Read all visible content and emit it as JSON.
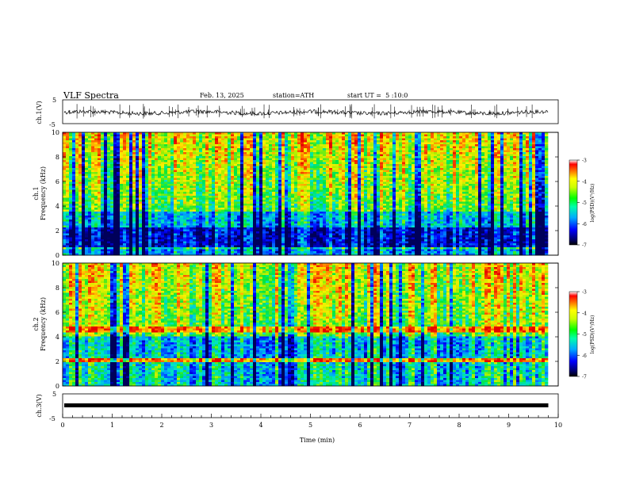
{
  "header": {
    "title": "VLF Spectra",
    "date": "Feb. 13, 2025",
    "station": "station=ATH",
    "start_ut": "start UT =  5 :10:0"
  },
  "chart_data": [
    {
      "type": "line",
      "name": "ch1-waveform",
      "ylabel": "ch.1(V)",
      "ylim": [
        -5,
        5
      ],
      "yticks": [
        "5",
        "-5"
      ],
      "xlim": [
        0,
        10
      ]
    },
    {
      "type": "heatmap",
      "name": "ch1-spectrogram",
      "ylabel_line1": "ch.1",
      "ylabel_line2": "Frequency (kHz)",
      "ylim": [
        0,
        10
      ],
      "yticks": [
        "0",
        "2",
        "4",
        "6",
        "8",
        "10"
      ],
      "xlim": [
        0,
        10
      ],
      "data_end_min": 9.8,
      "colorbar": {
        "range": [
          -7,
          -3
        ],
        "ticks": [
          "-3",
          "-4",
          "-5",
          "-6",
          "-7"
        ],
        "label": "log(PSD)(V²/Hz)"
      }
    },
    {
      "type": "heatmap",
      "name": "ch2-spectrogram",
      "ylabel_line1": "ch.2",
      "ylabel_line2": "Frequency (kHz)",
      "ylim": [
        0,
        10
      ],
      "yticks": [
        "0",
        "2",
        "4",
        "6",
        "8",
        "10"
      ],
      "xlim": [
        0,
        10
      ],
      "data_end_min": 9.8,
      "colorbar": {
        "range": [
          -7,
          -3
        ],
        "ticks": [
          "-3",
          "-4",
          "-5",
          "-6",
          "-7"
        ],
        "label": "log(PSD)(V²/Hz)"
      }
    },
    {
      "type": "line",
      "name": "ch3-waveform",
      "ylabel": "ch.3(V)",
      "ylim": [
        -5,
        5
      ],
      "yticks": [
        "5",
        "-5"
      ],
      "xlim": [
        0,
        10
      ],
      "xlabel": "Time (min)",
      "xticks": [
        "0",
        "1",
        "2",
        "3",
        "4",
        "5",
        "6",
        "7",
        "8",
        "9",
        "10"
      ]
    }
  ]
}
